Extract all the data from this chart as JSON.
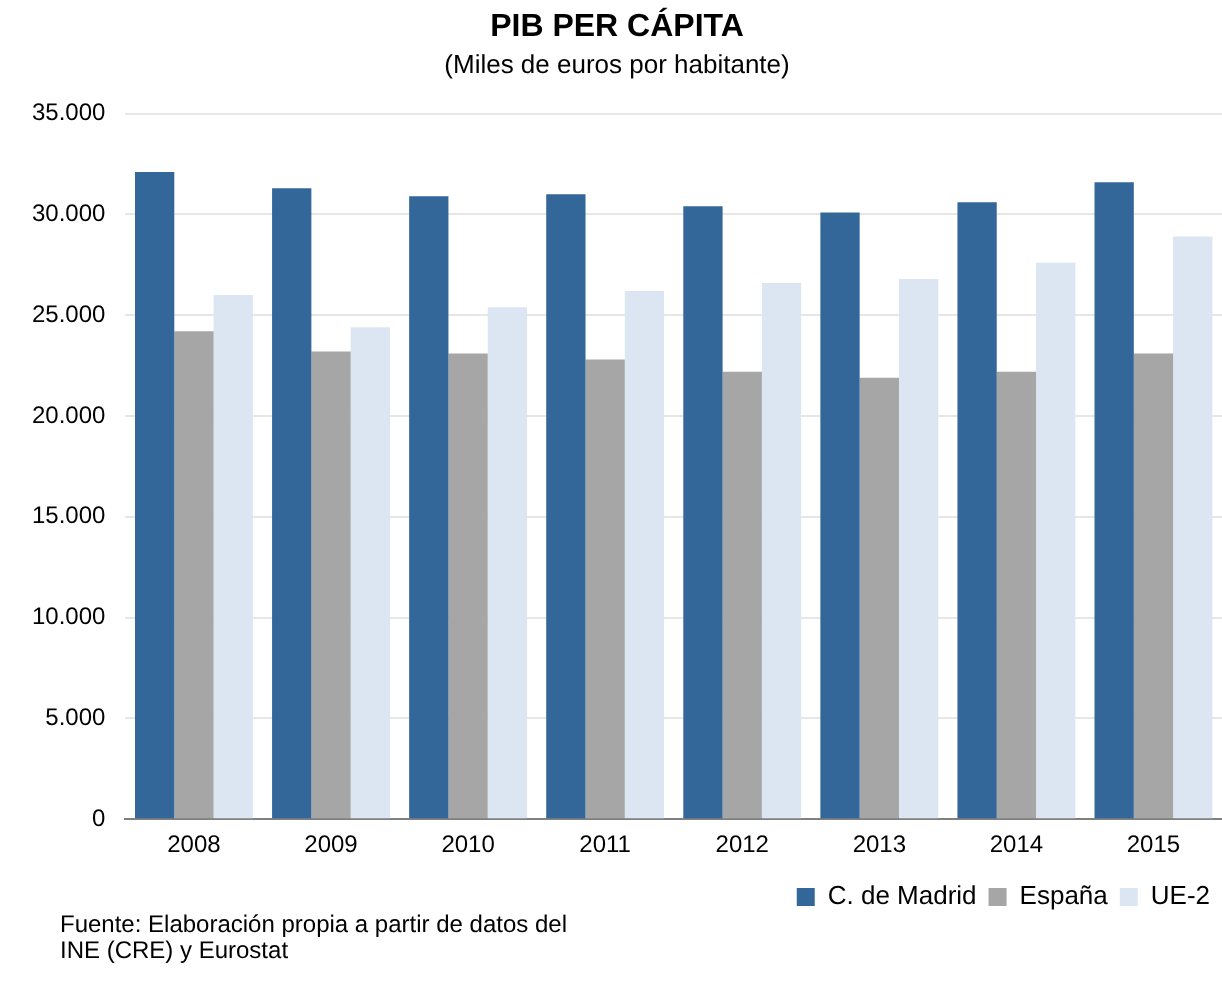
{
  "chart_data": {
    "type": "bar",
    "title": "PIB PER CÁPITA",
    "subtitle": "(Miles de euros por habitante)",
    "categories": [
      "2008",
      "2009",
      "2010",
      "2011",
      "2012",
      "2013",
      "2014",
      "2015"
    ],
    "series": [
      {
        "name": "C. de Madrid",
        "color": "#336699",
        "values": [
          32100,
          31300,
          30900,
          31000,
          30400,
          30100,
          30600,
          31600
        ]
      },
      {
        "name": "España",
        "color": "#a6a6a6",
        "values": [
          24200,
          23200,
          23100,
          22800,
          22200,
          21900,
          22200,
          23100
        ]
      },
      {
        "name": "UE-2",
        "color": "#dce6f2",
        "values": [
          26000,
          24400,
          25400,
          26200,
          26600,
          26800,
          27600,
          28900
        ]
      }
    ],
    "ylim": [
      0,
      35000
    ],
    "yticks": [
      {
        "value": 0,
        "label": "0"
      },
      {
        "value": 5000,
        "label": "5.000"
      },
      {
        "value": 10000,
        "label": "10.000"
      },
      {
        "value": 15000,
        "label": "15.000"
      },
      {
        "value": 20000,
        "label": "20.000"
      },
      {
        "value": 25000,
        "label": "25.000"
      },
      {
        "value": 30000,
        "label": "30.000"
      },
      {
        "value": 35000,
        "label": "35.000"
      }
    ],
    "grid": "y",
    "legend": "bottom right",
    "annotations": [
      "Fuente: Elaboración propia a partir de datos del INE (CRE) y Eurostat"
    ]
  }
}
